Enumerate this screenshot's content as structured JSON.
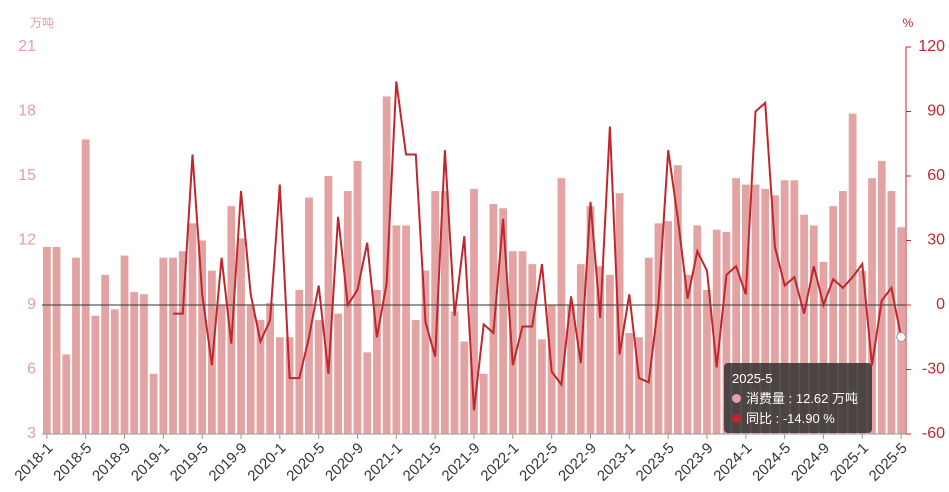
{
  "chart_data": {
    "type": "bar-line",
    "ylabel": "万吨",
    "y2label": "%",
    "categories": [
      "2018-1",
      null,
      null,
      null,
      "2018-5",
      null,
      null,
      null,
      "2018-9",
      null,
      null,
      null,
      "2019-1",
      null,
      null,
      null,
      "2019-5",
      null,
      null,
      null,
      "2019-9",
      null,
      null,
      null,
      "2020-1",
      null,
      null,
      null,
      "2020-5",
      null,
      null,
      null,
      "2020-9",
      null,
      null,
      null,
      "2021-1",
      null,
      null,
      null,
      "2021-5",
      null,
      null,
      null,
      "2021-9",
      null,
      null,
      null,
      "2022-1",
      null,
      null,
      null,
      "2022-5",
      null,
      null,
      null,
      "2022-9",
      null,
      null,
      null,
      "2023-1",
      null,
      null,
      null,
      "2023-5",
      null,
      null,
      null,
      "2023-9",
      null,
      null,
      null,
      "2024-1",
      null,
      null,
      null,
      "2024-5",
      null,
      null,
      null,
      "2024-9",
      null,
      null,
      null,
      "2025-1",
      null,
      null,
      null,
      "2025-5"
    ],
    "series": [
      {
        "name": "消费量",
        "type": "bar",
        "color": "#e3a3a3",
        "values": [
          11.7,
          11.7,
          6.7,
          11.2,
          16.7,
          8.5,
          10.4,
          8.8,
          11.3,
          9.6,
          9.5,
          5.8,
          11.2,
          11.2,
          11.5,
          12.8,
          12.0,
          10.6,
          9.0,
          13.6,
          12.1,
          9.0,
          8.3,
          9.1,
          7.5,
          7.5,
          9.7,
          14.0,
          8.3,
          15.0,
          8.6,
          14.3,
          15.7,
          6.8,
          9.7,
          18.7,
          12.7,
          12.7,
          8.3,
          10.6,
          14.3,
          14.3,
          8.7,
          7.3,
          14.4,
          5.8,
          13.7,
          13.5,
          11.5,
          11.5,
          10.9,
          7.4,
          9.0,
          14.9,
          9.0,
          10.9,
          13.6,
          10.8,
          10.4,
          14.2,
          7.7,
          7.5,
          11.2,
          12.8,
          12.9,
          15.5,
          10.4,
          12.7,
          9.7,
          12.5,
          12.4,
          14.9,
          14.6,
          14.6,
          14.4,
          14.1,
          14.8,
          14.8,
          13.2,
          12.7,
          11.0,
          13.6,
          14.3,
          17.9,
          10.6,
          14.9,
          15.7,
          14.3,
          12.62
        ]
      },
      {
        "name": "同比",
        "type": "line",
        "axis": "y2",
        "color": "#c0272d",
        "values": [
          null,
          null,
          null,
          null,
          null,
          null,
          null,
          null,
          null,
          null,
          null,
          null,
          null,
          -4,
          -4,
          70,
          5,
          -28,
          22,
          -18,
          53,
          5,
          -17,
          -7,
          56,
          -34,
          -34,
          -15,
          9,
          -32,
          41,
          0,
          7,
          29,
          -15,
          10,
          104,
          70,
          70,
          -8,
          -24,
          72,
          -5,
          32,
          -49,
          -9,
          -13,
          40,
          -28,
          -10,
          -10,
          19,
          -31,
          -37,
          4,
          -27,
          48,
          -6,
          83,
          -23,
          5,
          -34,
          -36,
          1,
          72,
          40,
          3,
          25,
          16,
          -29,
          14,
          18,
          5,
          90,
          94,
          27,
          9,
          13,
          -4,
          18,
          0,
          12,
          8,
          13,
          19,
          -28,
          2,
          8,
          -14.9
        ]
      }
    ],
    "ylim": [
      3,
      21
    ],
    "yticks": [
      3,
      6,
      9,
      12,
      15,
      18,
      21
    ],
    "y2lim": [
      -60,
      120
    ],
    "y2ticks": [
      -60,
      -30,
      0,
      30,
      60,
      90,
      120
    ],
    "tooltip": {
      "title": "2025-5",
      "rows": [
        "消费量 : 12.62 万吨",
        "同比 : -14.90 %"
      ]
    }
  }
}
